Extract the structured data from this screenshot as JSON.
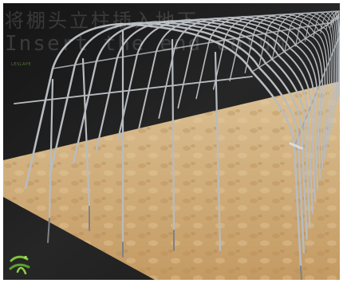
{
  "caption": {
    "chinese": "将棚头立柱插入地下",
    "english": "Insert the end colum"
  },
  "watermark": {
    "small_text": "LESLAPE"
  },
  "colors": {
    "background": "#1c1c1c",
    "ground": "#d2b07e",
    "pipe": "#b8bcc0"
  },
  "icons": [
    "logo-icon"
  ]
}
